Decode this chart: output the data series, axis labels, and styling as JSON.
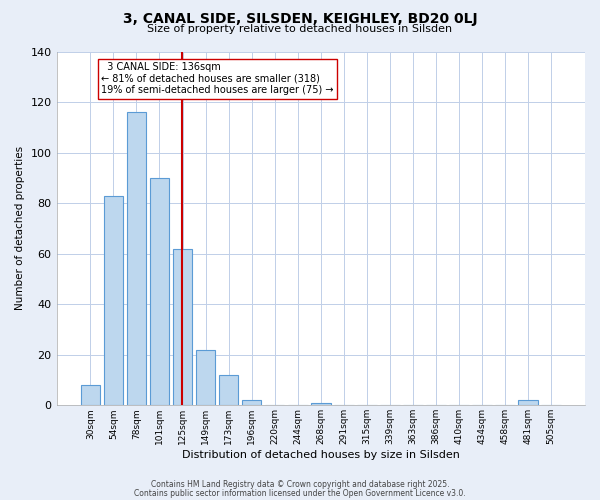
{
  "title": "3, CANAL SIDE, SILSDEN, KEIGHLEY, BD20 0LJ",
  "subtitle": "Size of property relative to detached houses in Silsden",
  "xlabel": "Distribution of detached houses by size in Silsden",
  "ylabel": "Number of detached properties",
  "bar_labels": [
    "30sqm",
    "54sqm",
    "78sqm",
    "101sqm",
    "125sqm",
    "149sqm",
    "173sqm",
    "196sqm",
    "220sqm",
    "244sqm",
    "268sqm",
    "291sqm",
    "315sqm",
    "339sqm",
    "363sqm",
    "386sqm",
    "410sqm",
    "434sqm",
    "458sqm",
    "481sqm",
    "505sqm"
  ],
  "bar_values": [
    8,
    83,
    116,
    90,
    62,
    22,
    12,
    2,
    0,
    0,
    1,
    0,
    0,
    0,
    0,
    0,
    0,
    0,
    0,
    2,
    0
  ],
  "bar_color": "#bdd7ee",
  "bar_edge_color": "#5b9bd5",
  "vline_color": "#cc0000",
  "ylim": [
    0,
    140
  ],
  "yticks": [
    0,
    20,
    40,
    60,
    80,
    100,
    120,
    140
  ],
  "annotation_title": "3 CANAL SIDE: 136sqm",
  "annotation_line1": "← 81% of detached houses are smaller (318)",
  "annotation_line2": "19% of semi-detached houses are larger (75) →",
  "footer1": "Contains HM Land Registry data © Crown copyright and database right 2025.",
  "footer2": "Contains public sector information licensed under the Open Government Licence v3.0.",
  "bg_color": "#e8eef8",
  "plot_bg_color": "#ffffff",
  "grid_color": "#c0cfe8"
}
